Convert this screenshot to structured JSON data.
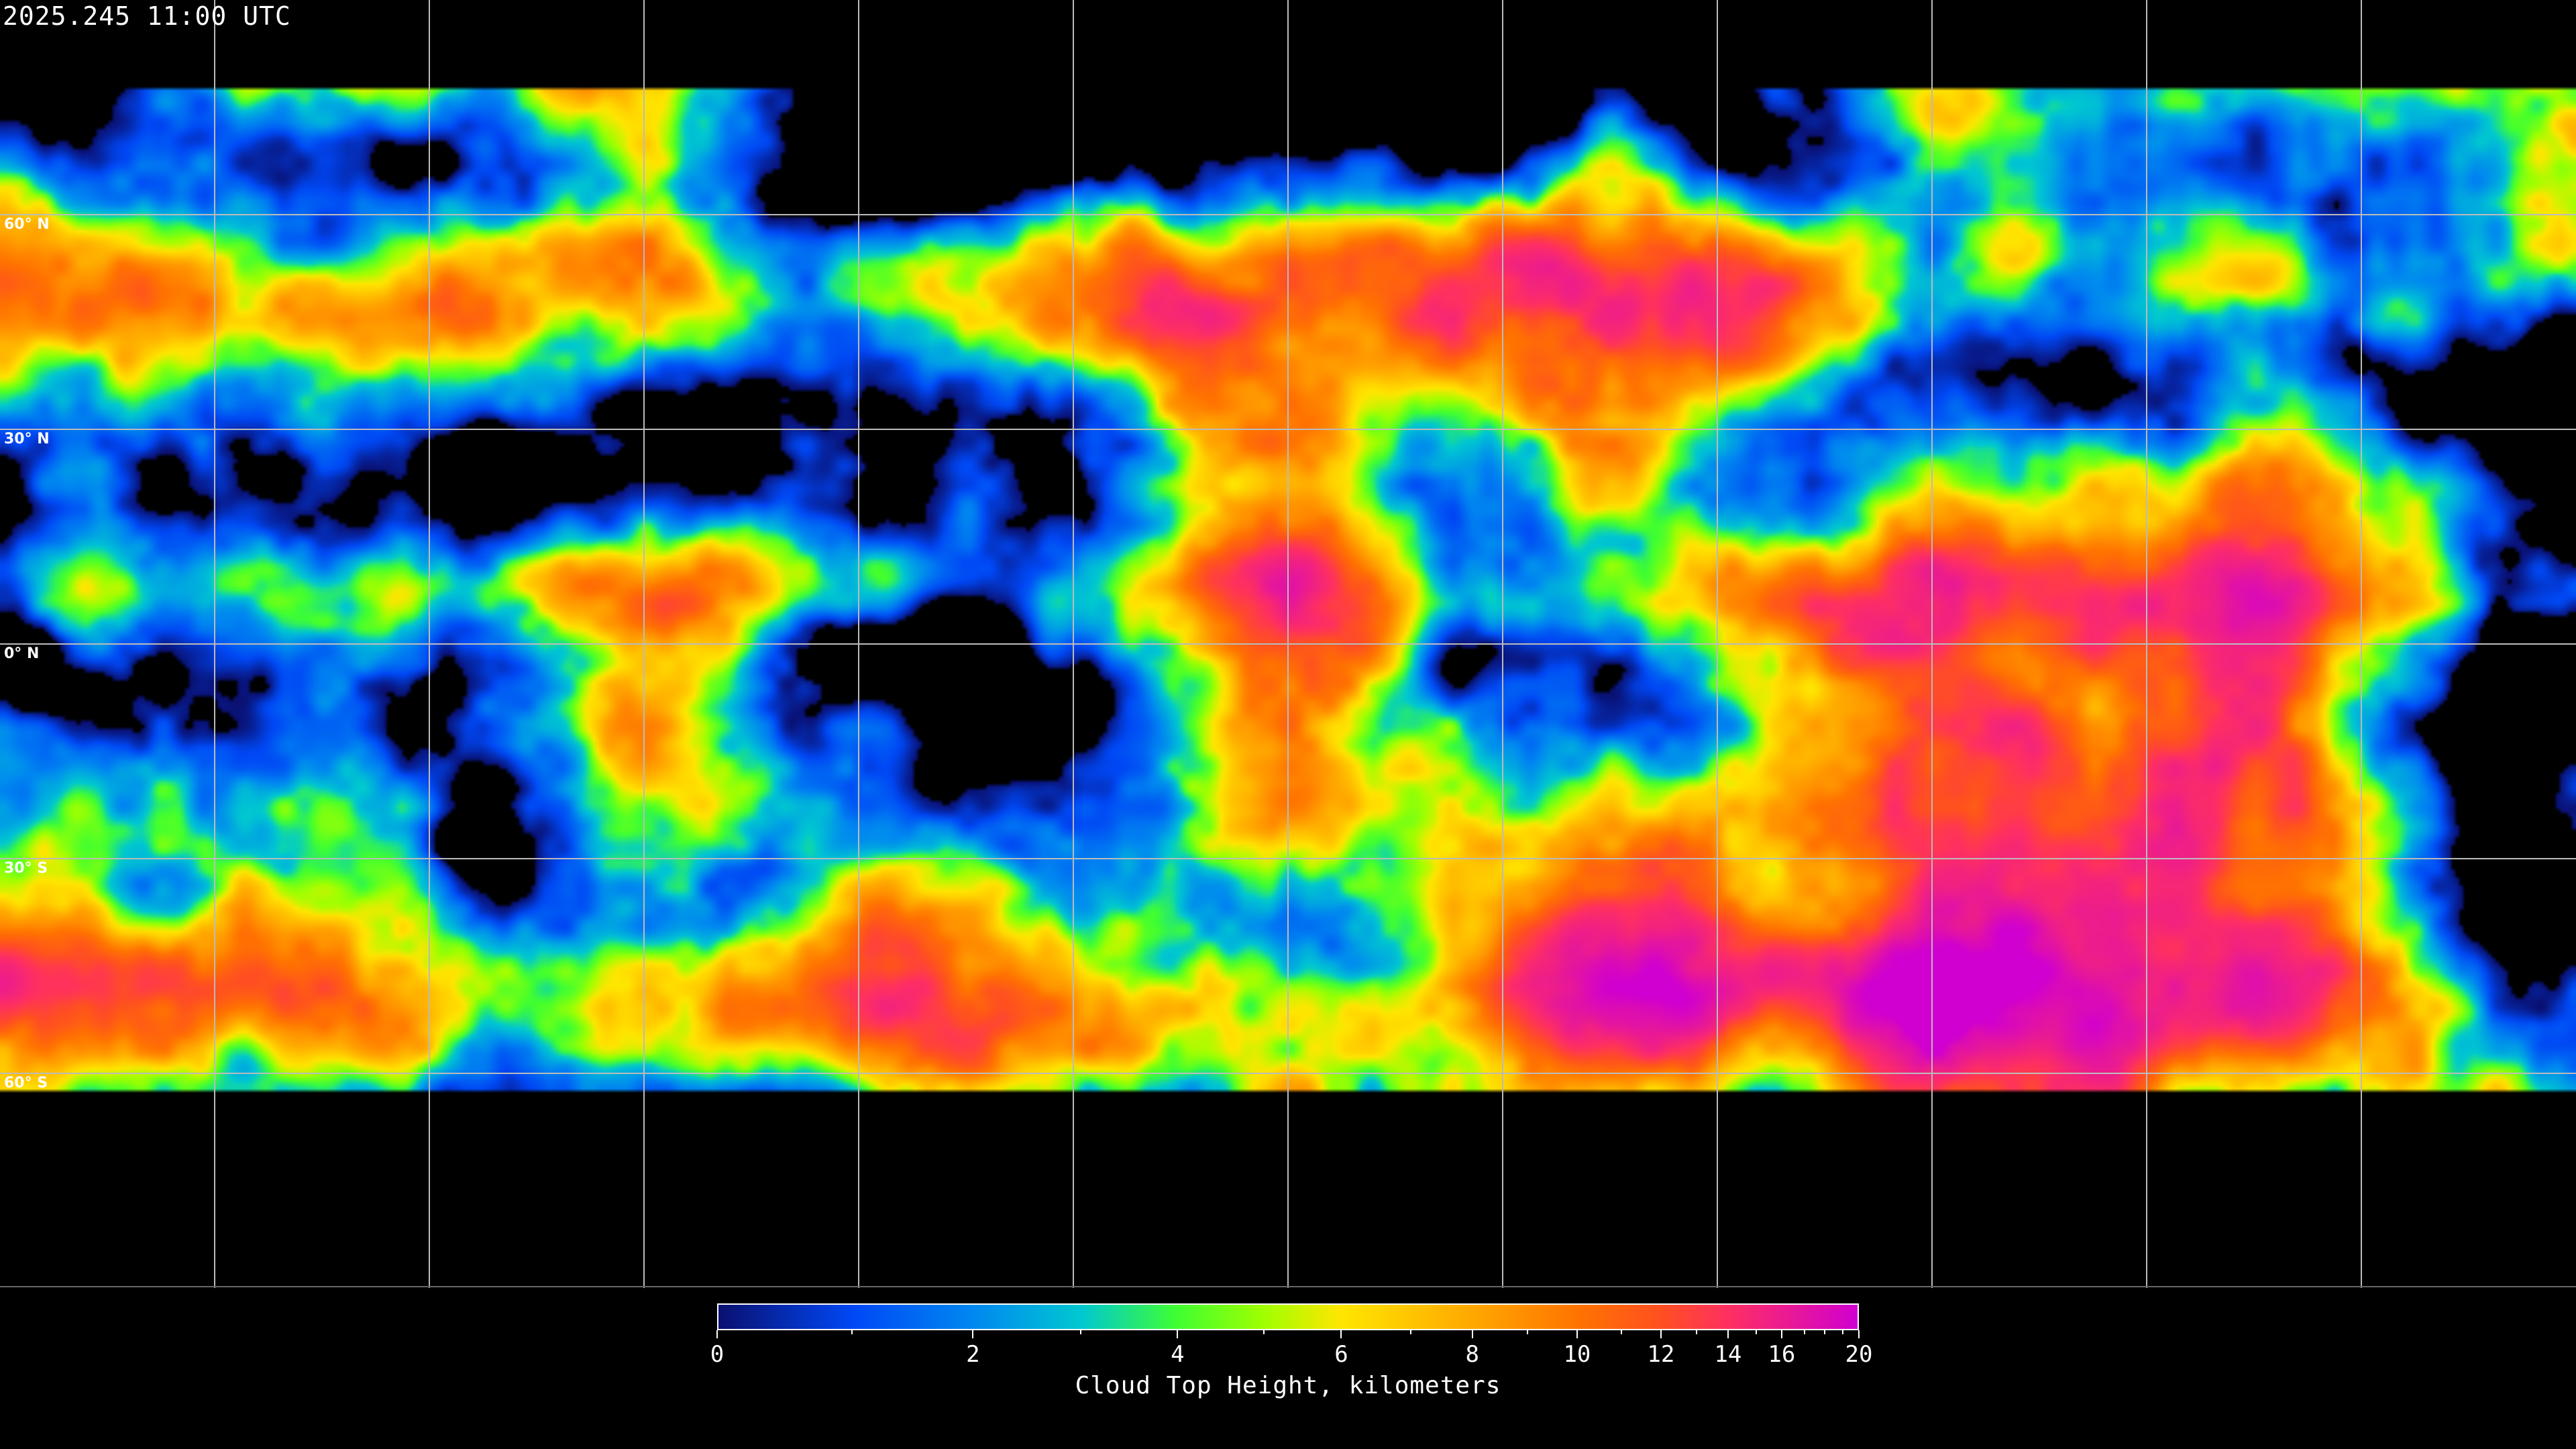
{
  "title": "2025.245 11:00 UTC",
  "map": {
    "projection": "equirectangular",
    "graticule_spacing_degrees": 30,
    "lat_labels": [
      "60° N",
      "30° N",
      "0° N",
      "30° S",
      "60° S"
    ],
    "lat_values": [
      60,
      30,
      0,
      -30,
      -60
    ],
    "background_color": "#000000",
    "gridline_color": "#bbbbbb",
    "coastline_color": "#ffffff"
  },
  "colorbar": {
    "label": "Cloud Top Height, kilometers",
    "min": 0,
    "max": 20,
    "scale": "nonlinear (compressed at high values)",
    "major_ticks": [
      "0",
      "2",
      "4",
      "6",
      "8",
      "10",
      "12",
      "14",
      "16",
      "20"
    ],
    "minor_ticks": [
      1,
      3,
      5,
      7,
      9,
      11,
      13,
      15,
      17,
      18,
      19
    ],
    "stops": [
      {
        "value": 0,
        "color": "#0a1070"
      },
      {
        "value": 1,
        "color": "#0048f5"
      },
      {
        "value": 2,
        "color": "#0088f0"
      },
      {
        "value": 3,
        "color": "#00c8d0"
      },
      {
        "value": 4,
        "color": "#40ff30"
      },
      {
        "value": 5,
        "color": "#a0ff00"
      },
      {
        "value": 6,
        "color": "#ffe600"
      },
      {
        "value": 8,
        "color": "#ffa800"
      },
      {
        "value": 10,
        "color": "#ff7400"
      },
      {
        "value": 12,
        "color": "#ff5020"
      },
      {
        "value": 14,
        "color": "#ff3060"
      },
      {
        "value": 20,
        "color": "#d000d0"
      }
    ]
  }
}
